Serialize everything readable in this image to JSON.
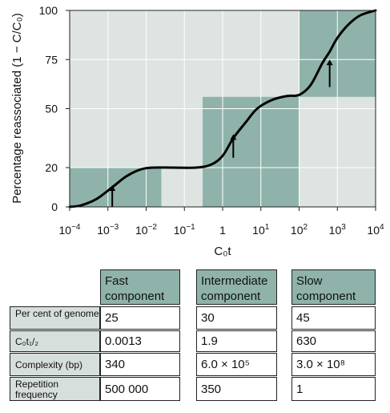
{
  "chart_data": {
    "type": "line",
    "xscale": "log",
    "xlim": [
      0.0001,
      10000
    ],
    "ylim": [
      0,
      100
    ],
    "x_ticks": [
      {
        "base": "10",
        "exp": "−4"
      },
      {
        "base": "10",
        "exp": "−3"
      },
      {
        "base": "10",
        "exp": "−2"
      },
      {
        "base": "10",
        "exp": "−1"
      },
      {
        "base": "1",
        "exp": ""
      },
      {
        "base": "10",
        "exp": "1"
      },
      {
        "base": "10",
        "exp": "2"
      },
      {
        "base": "10",
        "exp": "3"
      },
      {
        "base": "10",
        "exp": "4"
      }
    ],
    "y_ticks": [
      "0",
      "20",
      "50",
      "75",
      "100"
    ],
    "y_tick_values": [
      0,
      20,
      50,
      75,
      100
    ],
    "xlabel": "C₀t",
    "ylabel": "Percentage reassociated (1 − C/C₀)",
    "grid": true,
    "curve": [
      [
        0.0001,
        0
      ],
      [
        0.0002,
        0.8
      ],
      [
        0.0005,
        4
      ],
      [
        0.0013,
        10
      ],
      [
        0.003,
        15.5
      ],
      [
        0.007,
        19
      ],
      [
        0.015,
        20
      ],
      [
        0.05,
        20
      ],
      [
        0.2,
        20
      ],
      [
        0.5,
        21.5
      ],
      [
        1.0,
        26
      ],
      [
        1.9,
        35
      ],
      [
        4,
        43
      ],
      [
        8,
        50
      ],
      [
        20,
        54.5
      ],
      [
        50,
        56.5
      ],
      [
        100,
        57
      ],
      [
        200,
        62
      ],
      [
        400,
        73
      ],
      [
        630,
        79
      ],
      [
        1000,
        86
      ],
      [
        2000,
        93
      ],
      [
        4000,
        97.5
      ],
      [
        10000,
        100
      ]
    ],
    "regions": [
      {
        "x": [
          0.0001,
          0.025
        ],
        "y": [
          0,
          20
        ]
      },
      {
        "x": [
          0.3,
          100
        ],
        "y": [
          0,
          56
        ]
      },
      {
        "x": [
          100,
          10000
        ],
        "y": [
          56,
          100
        ]
      }
    ],
    "arrows": [
      {
        "x": 0.0013,
        "y_from": 0,
        "y_to": 11
      },
      {
        "x": 1.9,
        "y_from": 25,
        "y_to": 37
      },
      {
        "x": 630,
        "y_from": 61,
        "y_to": 75
      }
    ],
    "colors": {
      "background": "#dde4e2",
      "region": "#8fb3aa",
      "grid": "#ffffff",
      "curve": "#000000"
    }
  },
  "table": {
    "headers": [
      {
        "line1": "Fast",
        "line2": "component"
      },
      {
        "line1": "Intermediate",
        "line2": "component"
      },
      {
        "line1": "Slow",
        "line2": "component"
      }
    ],
    "rows": [
      {
        "label": "Per cent of genome",
        "values": [
          "25",
          "30",
          "45"
        ]
      },
      {
        "label": "C₀t₁/₂",
        "values": [
          "0.0013",
          "1.9",
          "630"
        ]
      },
      {
        "label": "Complexity (bp)",
        "values": [
          "340",
          "6.0 × 10⁵",
          "3.0 × 10⁸"
        ]
      },
      {
        "label": "Repetition frequency",
        "values": [
          "500 000",
          "350",
          "1"
        ]
      }
    ]
  }
}
